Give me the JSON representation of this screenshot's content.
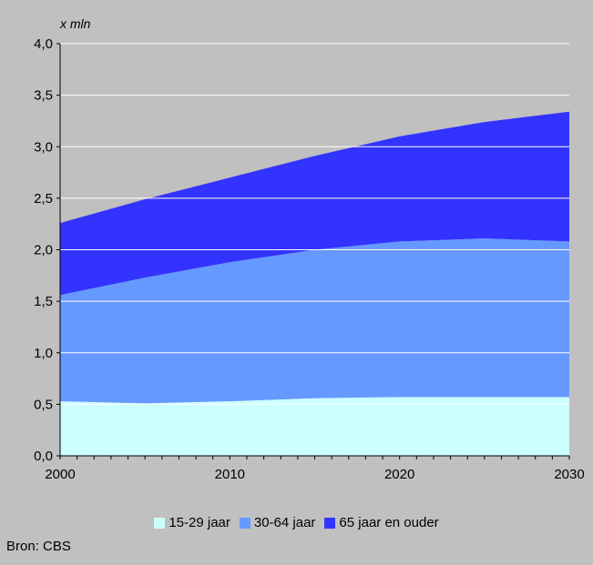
{
  "chart_data": {
    "type": "area",
    "stacked": true,
    "unit_label": "x mln",
    "x": [
      2000,
      2005,
      2010,
      2015,
      2020,
      2025,
      2030
    ],
    "series": [
      {
        "name": "15-29 jaar",
        "color": "#ccffff",
        "values": [
          0.53,
          0.51,
          0.53,
          0.56,
          0.57,
          0.57,
          0.57
        ]
      },
      {
        "name": "30-64 jaar",
        "color": "#6699ff",
        "values": [
          1.03,
          1.22,
          1.35,
          1.44,
          1.51,
          1.54,
          1.51
        ]
      },
      {
        "name": "65 jaar en ouder",
        "color": "#3333ff",
        "values": [
          0.7,
          0.76,
          0.82,
          0.91,
          1.02,
          1.13,
          1.26
        ]
      }
    ],
    "xlim": [
      2000,
      2030
    ],
    "ylim": [
      0,
      4.0
    ],
    "xticks": [
      "2000",
      "2010",
      "2020",
      "2030"
    ],
    "yticks": [
      "0,0",
      "0,5",
      "1,0",
      "1,5",
      "2,0",
      "2,5",
      "3,0",
      "3,5",
      "4,0"
    ],
    "grid": true,
    "legend_position": "bottom",
    "source": "Bron: CBS"
  }
}
